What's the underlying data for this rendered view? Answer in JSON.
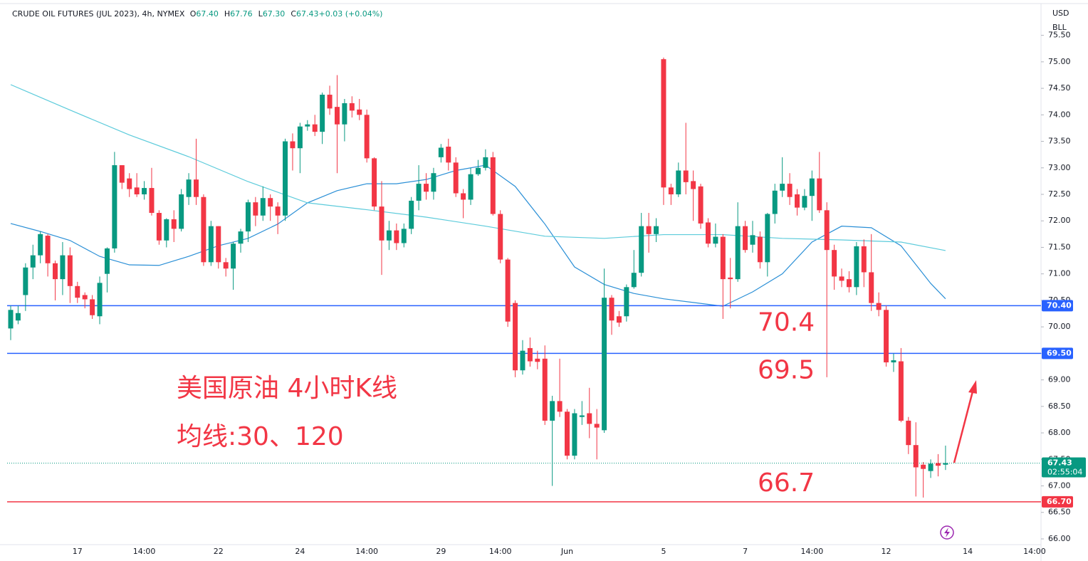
{
  "chart_data": {
    "type": "candlestick",
    "title": "CRUDE OIL FUTURES (JUL 2023), 4h, NYMEX",
    "ohlc_legend": [
      {
        "key": "O",
        "value": "67.40"
      },
      {
        "key": "H",
        "value": "67.76"
      },
      {
        "key": "L",
        "value": "67.30"
      },
      {
        "key": "C",
        "value": "67.43"
      },
      {
        "key": "",
        "value": "+0.03 (+0.04%)"
      }
    ],
    "currency": "USD",
    "unit": "BLL",
    "up_color": "#089981",
    "down_color": "#f23645",
    "categories": [
      null,
      null,
      null,
      null,
      null,
      null,
      null,
      null,
      null,
      "17",
      null,
      null,
      null,
      null,
      null,
      null,
      null,
      null,
      "14:00",
      null,
      null,
      null,
      null,
      null,
      null,
      null,
      null,
      null,
      "22",
      null,
      null,
      null,
      null,
      null,
      null,
      null,
      null,
      null,
      null,
      "24",
      null,
      null,
      null,
      null,
      null,
      null,
      null,
      null,
      "14:00",
      null,
      null,
      null,
      null,
      null,
      null,
      null,
      null,
      null,
      "29",
      null,
      null,
      null,
      null,
      null,
      null,
      null,
      "14:00",
      null,
      null,
      null,
      null,
      null,
      null,
      null,
      null,
      "Jun",
      null,
      null,
      null,
      null,
      null,
      null,
      null,
      null,
      null,
      null,
      null,
      null,
      "5",
      null,
      null,
      null,
      null,
      null,
      null,
      null,
      null,
      null,
      null,
      "7",
      null,
      null,
      null,
      null,
      null,
      null,
      null,
      null,
      "14:00",
      null,
      null,
      null,
      null,
      null,
      null,
      null,
      null,
      null,
      "12",
      null,
      null,
      null,
      null,
      null,
      null,
      null,
      null,
      null,
      null,
      "14",
      null,
      null,
      null,
      null,
      null,
      null,
      null,
      null,
      "14:00"
    ],
    "open": [
      69.97,
      70.12,
      70.6,
      71.12,
      71.35,
      71.72,
      71.2,
      70.9,
      71.35,
      70.77,
      70.6,
      70.52,
      70.2,
      71.0,
      71.48,
      73.05,
      72.8,
      72.63,
      72.5,
      72.62,
      72.15,
      71.63,
      72.03,
      71.85,
      72.45,
      72.78,
      72.45,
      71.22,
      71.9,
      71.22,
      71.1,
      71.57,
      71.8,
      72.35,
      72.1,
      72.43,
      72.27,
      72.1,
      73.5,
      73.37,
      73.78,
      73.82,
      73.68,
      74.38,
      74.15,
      73.82,
      74.22,
      74.1,
      74.0,
      73.18,
      72.27,
      71.63,
      71.82,
      71.58,
      71.85,
      72.38,
      72.7,
      72.55,
      73.2,
      73.4,
      73.1,
      72.52,
      72.4,
      72.88,
      73.0,
      73.2,
      72.13,
      71.27,
      70.45,
      69.18,
      69.6,
      69.4,
      69.4,
      68.23,
      68.6,
      68.4,
      67.57,
      68.3,
      68.37,
      68.17,
      68.05,
      70.55,
      70.2,
      70.2,
      70.75,
      71.02,
      71.9,
      71.75,
      75.05,
      72.63,
      72.5,
      72.95,
      72.75,
      72.65,
      71.97,
      71.57,
      71.7,
      70.93,
      70.9,
      71.9,
      71.55,
      71.7,
      71.22,
      72.13,
      72.57,
      72.7,
      72.5,
      72.25,
      72.47,
      72.8,
      72.2,
      71.45,
      70.95,
      70.9,
      70.75,
      71.52,
      71.03,
      70.45,
      70.32,
      69.33,
      69.35,
      68.23,
      67.77,
      67.4,
      67.28,
      67.43,
      67.4,
      null,
      null,
      null,
      null,
      null,
      null,
      null,
      null,
      null,
      null,
      null,
      null
    ],
    "high": [
      70.4,
      70.4,
      71.2,
      71.55,
      71.8,
      71.75,
      71.25,
      71.6,
      71.5,
      70.85,
      70.65,
      70.6,
      70.95,
      71.5,
      73.3,
      73.05,
      72.9,
      72.9,
      72.75,
      73.0,
      72.2,
      72.05,
      72.2,
      72.6,
      72.9,
      73.55,
      72.5,
      72.0,
      71.9,
      71.3,
      71.6,
      71.85,
      72.4,
      72.45,
      72.65,
      72.5,
      72.35,
      73.55,
      73.65,
      73.85,
      73.9,
      74.0,
      74.42,
      74.55,
      74.75,
      74.3,
      74.35,
      74.3,
      74.1,
      73.2,
      72.75,
      72.0,
      71.95,
      71.95,
      72.45,
      73.05,
      72.9,
      73.0,
      73.45,
      73.55,
      73.2,
      72.6,
      73.0,
      73.15,
      73.35,
      73.3,
      72.2,
      71.3,
      70.5,
      69.75,
      69.8,
      69.55,
      69.65,
      68.7,
      69.4,
      68.45,
      68.45,
      68.6,
      68.85,
      68.45,
      71.1,
      70.6,
      70.3,
      70.8,
      71.45,
      72.15,
      72.15,
      72.05,
      75.08,
      72.7,
      73.1,
      73.85,
      72.95,
      72.7,
      72.05,
      71.95,
      71.75,
      71.3,
      72.35,
      72.0,
      72.0,
      71.8,
      72.15,
      72.7,
      73.2,
      72.9,
      72.6,
      72.6,
      72.95,
      73.3,
      72.35,
      71.55,
      71.1,
      71.05,
      71.6,
      71.65,
      71.75,
      70.65,
      70.4,
      69.5,
      69.6,
      68.3,
      68.2,
      67.45,
      67.5,
      67.6,
      67.76,
      null,
      null,
      null,
      null,
      null,
      null,
      null,
      null,
      null,
      null,
      null,
      null
    ],
    "low": [
      69.75,
      70.05,
      70.3,
      70.9,
      71.2,
      70.95,
      70.5,
      70.6,
      70.45,
      70.45,
      70.35,
      70.15,
      70.05,
      70.65,
      71.4,
      72.6,
      72.45,
      72.45,
      72.4,
      72.1,
      71.55,
      71.5,
      71.6,
      71.8,
      72.3,
      72.3,
      71.15,
      71.15,
      71.1,
      70.95,
      70.7,
      71.4,
      71.6,
      71.9,
      72.0,
      72.0,
      71.75,
      72.0,
      72.95,
      72.9,
      73.7,
      73.6,
      73.45,
      74.0,
      72.9,
      73.5,
      73.95,
      73.9,
      73.1,
      72.2,
      70.98,
      71.45,
      71.45,
      71.5,
      71.75,
      72.2,
      72.4,
      72.4,
      73.1,
      72.95,
      72.45,
      72.05,
      72.3,
      72.85,
      72.95,
      72.1,
      71.2,
      70.0,
      69.05,
      69.1,
      69.25,
      69.2,
      68.15,
      67.0,
      68.3,
      67.5,
      67.5,
      68.15,
      67.9,
      67.5,
      68.0,
      69.85,
      70.0,
      70.1,
      70.72,
      70.95,
      71.4,
      71.6,
      72.3,
      72.3,
      72.45,
      72.5,
      72.0,
      71.85,
      71.5,
      71.5,
      70.15,
      70.35,
      70.85,
      71.4,
      71.4,
      71.1,
      70.95,
      71.95,
      72.45,
      72.3,
      72.1,
      72.2,
      72.0,
      72.15,
      69.05,
      70.7,
      70.75,
      70.65,
      70.6,
      70.75,
      70.3,
      70.2,
      69.25,
      69.15,
      68.2,
      67.6,
      66.8,
      66.78,
      67.15,
      67.18,
      67.3,
      null,
      null,
      null,
      null,
      null,
      null,
      null,
      null,
      null,
      null,
      null,
      null
    ],
    "close": [
      70.32,
      70.26,
      71.12,
      71.35,
      71.75,
      71.2,
      70.9,
      71.35,
      70.77,
      70.55,
      70.52,
      70.22,
      70.83,
      71.48,
      73.05,
      72.72,
      72.6,
      72.5,
      72.62,
      72.15,
      71.63,
      72.03,
      71.85,
      72.5,
      72.78,
      72.45,
      71.22,
      71.9,
      71.22,
      71.1,
      71.57,
      71.8,
      72.35,
      72.1,
      72.43,
      72.27,
      72.1,
      73.5,
      73.37,
      73.78,
      73.82,
      73.68,
      74.38,
      74.12,
      73.82,
      74.22,
      74.08,
      74.0,
      73.18,
      72.27,
      71.63,
      71.82,
      71.58,
      71.85,
      72.38,
      72.7,
      72.55,
      72.9,
      73.38,
      73.1,
      72.52,
      72.4,
      72.88,
      73.0,
      73.2,
      72.13,
      71.27,
      70.1,
      69.18,
      69.55,
      69.35,
      69.34,
      68.23,
      68.6,
      68.4,
      67.57,
      68.37,
      68.33,
      68.17,
      68.1,
      70.55,
      70.12,
      70.08,
      70.75,
      71.02,
      71.9,
      71.75,
      71.9,
      72.63,
      72.5,
      72.95,
      72.73,
      72.6,
      71.95,
      71.57,
      71.7,
      70.9,
      70.9,
      71.9,
      71.45,
      71.73,
      71.22,
      72.13,
      72.57,
      72.7,
      72.45,
      72.25,
      72.47,
      72.8,
      72.2,
      71.45,
      70.95,
      70.87,
      70.75,
      71.52,
      71.03,
      70.45,
      70.32,
      69.33,
      69.37,
      68.23,
      67.77,
      67.35,
      67.32,
      67.42,
      67.38,
      67.43,
      null,
      null,
      null,
      null,
      null,
      null,
      null,
      null,
      null,
      null,
      null,
      null
    ],
    "moving_averages": [
      {
        "color": "#2a8fd6",
        "x": [
          0,
          4,
          8,
          12,
          16,
          20,
          24,
          28,
          32,
          36,
          40,
          44,
          48,
          52,
          56,
          60,
          64,
          68,
          72,
          76,
          80,
          84,
          88,
          92,
          96,
          100,
          104,
          108,
          112,
          116,
          120,
          124,
          126
        ],
        "values": [
          71.95,
          71.8,
          71.63,
          71.33,
          71.17,
          71.16,
          71.33,
          71.53,
          71.67,
          71.94,
          72.34,
          72.57,
          72.7,
          72.7,
          72.78,
          72.95,
          73.05,
          72.65,
          71.94,
          71.13,
          70.8,
          70.63,
          70.53,
          70.46,
          70.39,
          70.66,
          71.0,
          71.6,
          71.9,
          71.87,
          71.53,
          70.82,
          70.53
        ]
      },
      {
        "color": "#5ccbdb",
        "x": [
          0,
          8,
          16,
          24,
          32,
          40,
          48,
          56,
          64,
          72,
          80,
          88,
          96,
          104,
          112,
          120,
          126
        ],
        "values": [
          74.57,
          74.09,
          73.62,
          73.21,
          72.74,
          72.34,
          72.21,
          72.07,
          71.9,
          71.71,
          71.67,
          71.74,
          71.74,
          71.67,
          71.64,
          71.6,
          71.44
        ]
      }
    ],
    "levels": [
      {
        "value": 70.4,
        "label": "70.40",
        "note": "70.4",
        "color": "#2962ff"
      },
      {
        "value": 69.5,
        "label": "69.50",
        "note": "69.5",
        "color": "#2962ff"
      },
      {
        "value": 66.7,
        "label": "66.70",
        "note": "66.7",
        "color": "#f23645"
      }
    ],
    "last_price": {
      "value": 67.43,
      "label": "67.43",
      "countdown": "02:55:04",
      "color": "#089981"
    },
    "annotations": [
      "美国原油 4小时K线",
      "均线:30、120"
    ],
    "ylim": [
      65.9,
      76.0
    ],
    "yticks": [
      {
        "value": 66,
        "label": "66.00"
      },
      {
        "value": 66.5,
        "label": "66.50"
      },
      {
        "value": 67,
        "label": "67.00"
      },
      {
        "value": 67.5,
        "label": "67.50"
      },
      {
        "value": 68,
        "label": "68.00"
      },
      {
        "value": 68.5,
        "label": "68.50"
      },
      {
        "value": 69,
        "label": "69.00"
      },
      {
        "value": 69.5,
        "label": "69.50"
      },
      {
        "value": 70,
        "label": "70.00"
      },
      {
        "value": 70.5,
        "label": "70.50"
      },
      {
        "value": 71,
        "label": "71.00"
      },
      {
        "value": 71.5,
        "label": "71.50"
      },
      {
        "value": 72,
        "label": "72.00"
      },
      {
        "value": 72.5,
        "label": "72.50"
      },
      {
        "value": 73,
        "label": "73.00"
      },
      {
        "value": 73.5,
        "label": "73.50"
      },
      {
        "value": 74,
        "label": "74.00"
      },
      {
        "value": 74.5,
        "label": "74.50"
      },
      {
        "value": 75,
        "label": "75.00"
      },
      {
        "value": 75.5,
        "label": "75.50"
      }
    ],
    "grid": false
  }
}
